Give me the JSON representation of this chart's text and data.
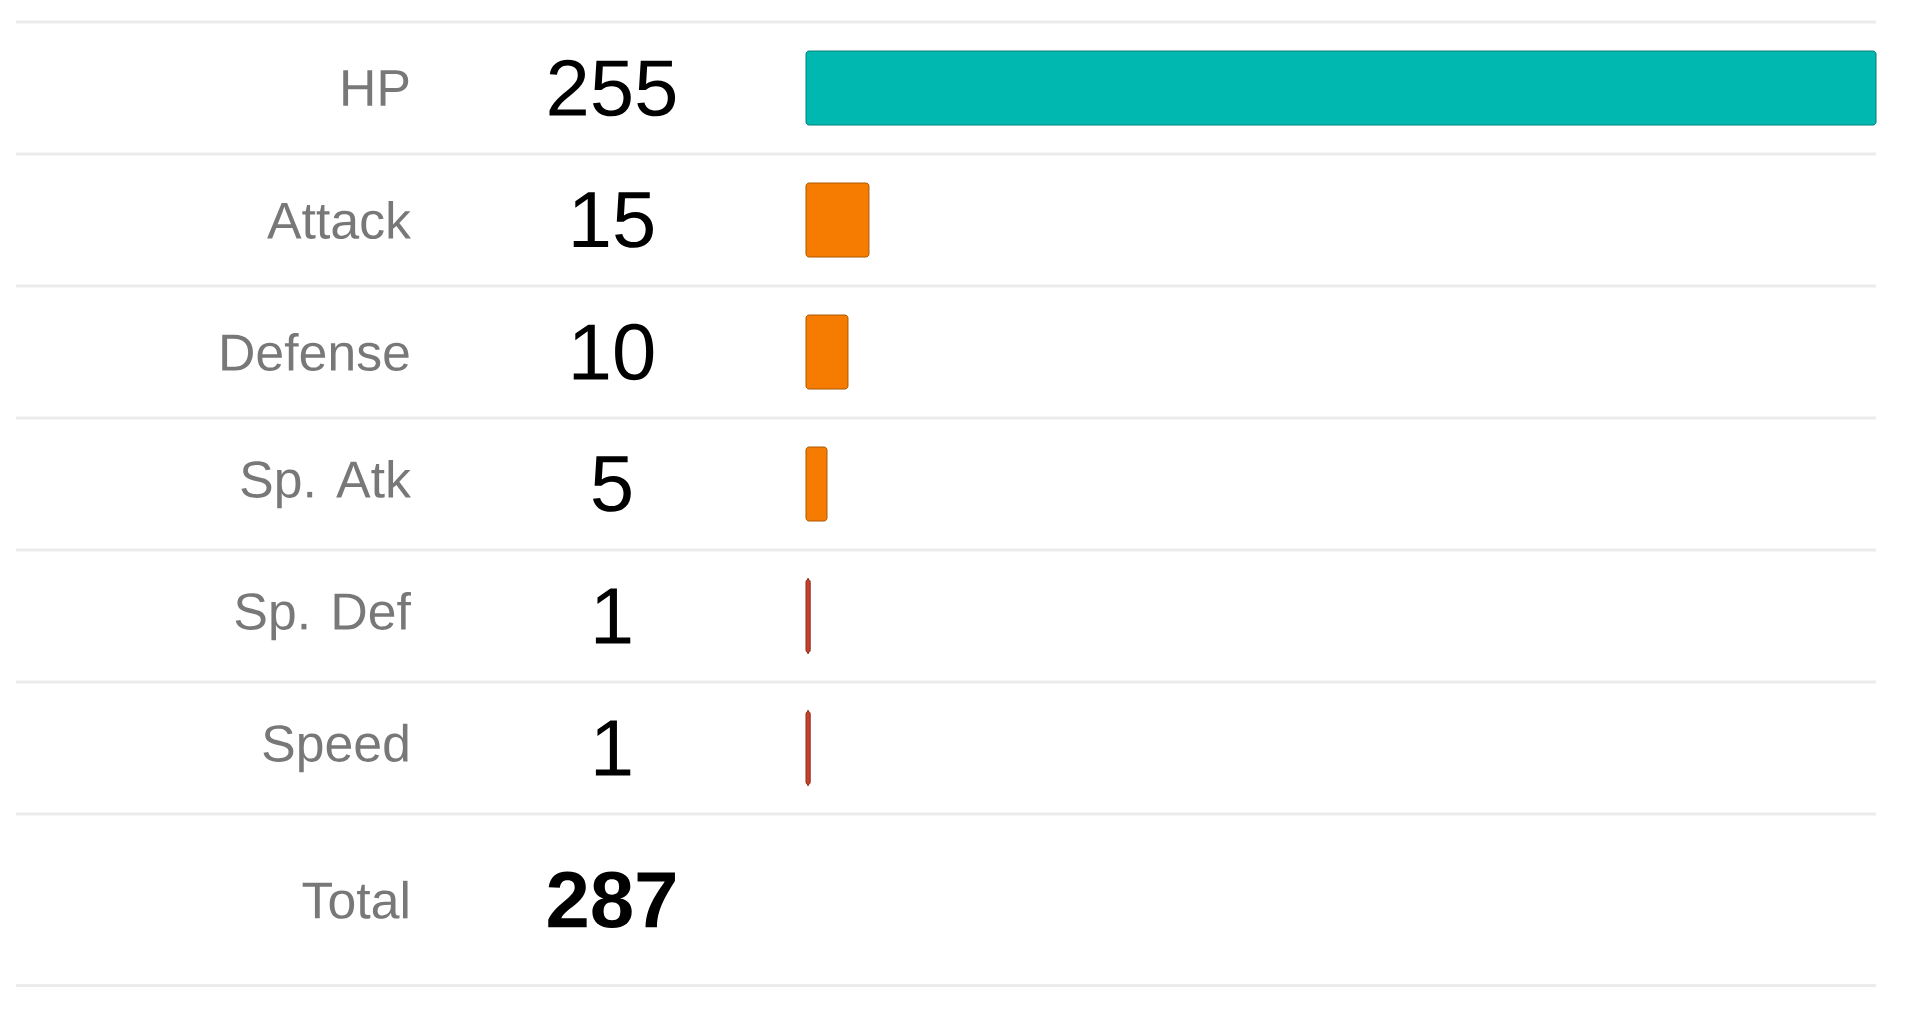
{
  "chart_data": {
    "type": "bar",
    "orientation": "horizontal",
    "categories": [
      "HP",
      "Attack",
      "Defense",
      "Sp. Atk",
      "Sp. Def",
      "Speed"
    ],
    "values": [
      255,
      15,
      10,
      5,
      1,
      1
    ],
    "colors": [
      "#00b8b0",
      "#f57c00",
      "#f57c00",
      "#f57c00",
      "#c8402a",
      "#c8402a"
    ],
    "data_labels": true,
    "tick_labels": "y",
    "annotations": [
      "Total",
      "287"
    ]
  }
}
